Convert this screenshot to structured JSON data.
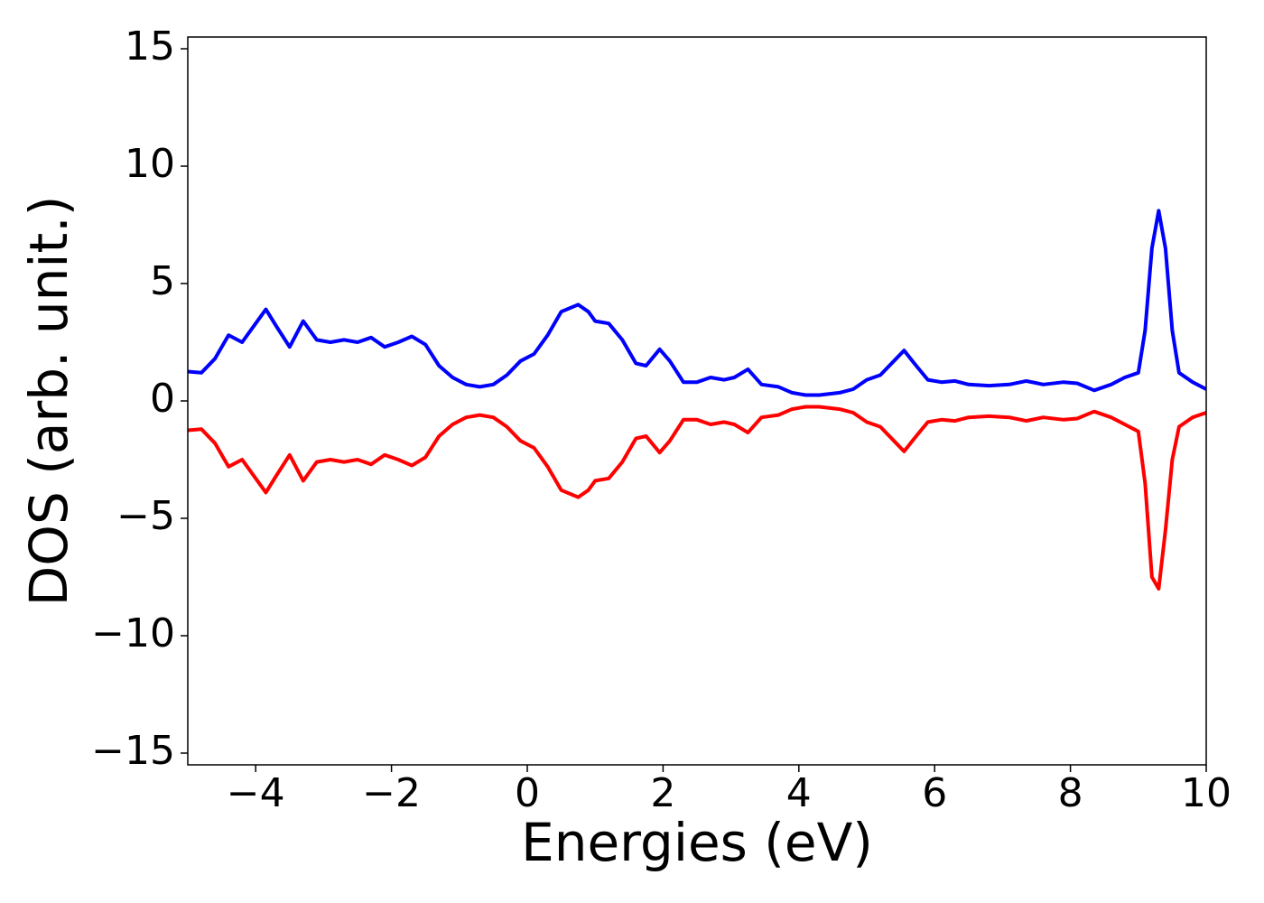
{
  "chart_data": {
    "type": "line",
    "x_label": "Energies (eV)",
    "y_label": "DOS (arb. unit.)",
    "x": [
      -5,
      -4.8,
      -4.6,
      -4.4,
      -4.2,
      -4.0,
      -3.85,
      -3.7,
      -3.5,
      -3.3,
      -3.1,
      -2.9,
      -2.7,
      -2.5,
      -2.3,
      -2.1,
      -1.9,
      -1.7,
      -1.5,
      -1.3,
      -1.1,
      -0.9,
      -0.7,
      -0.5,
      -0.3,
      -0.1,
      0.1,
      0.3,
      0.5,
      0.75,
      0.9,
      1.0,
      1.2,
      1.4,
      1.6,
      1.75,
      1.95,
      2.1,
      2.3,
      2.5,
      2.7,
      2.9,
      3.05,
      3.25,
      3.45,
      3.7,
      3.9,
      4.1,
      4.3,
      4.6,
      4.8,
      5.0,
      5.2,
      5.4,
      5.55,
      5.7,
      5.9,
      6.1,
      6.3,
      6.5,
      6.8,
      7.1,
      7.35,
      7.6,
      7.9,
      8.1,
      8.35,
      8.6,
      8.8,
      9.0,
      9.1,
      9.2,
      9.3,
      9.4,
      9.5,
      9.6,
      9.8,
      10
    ],
    "series": [
      {
        "color": "#0000ff",
        "values": [
          1.25,
          1.2,
          1.8,
          2.8,
          2.5,
          3.3,
          3.9,
          3.2,
          2.3,
          3.4,
          2.6,
          2.5,
          2.6,
          2.5,
          2.7,
          2.3,
          2.5,
          2.75,
          2.4,
          1.5,
          1.0,
          0.7,
          0.6,
          0.7,
          1.1,
          1.7,
          2.0,
          2.8,
          3.8,
          4.1,
          3.8,
          3.4,
          3.3,
          2.6,
          1.6,
          1.5,
          2.2,
          1.7,
          0.8,
          0.8,
          1.0,
          0.9,
          1.0,
          1.35,
          0.7,
          0.6,
          0.35,
          0.25,
          0.25,
          0.35,
          0.5,
          0.9,
          1.1,
          1.7,
          2.15,
          1.6,
          0.9,
          0.8,
          0.85,
          0.7,
          0.65,
          0.7,
          0.85,
          0.7,
          0.8,
          0.75,
          0.45,
          0.7,
          1.0,
          1.2,
          3.0,
          6.5,
          8.1,
          6.5,
          3.0,
          1.2,
          0.8,
          0.5
        ]
      },
      {
        "color": "#ff0000",
        "values": [
          -1.25,
          -1.2,
          -1.8,
          -2.8,
          -2.5,
          -3.3,
          -3.9,
          -3.2,
          -2.3,
          -3.4,
          -2.6,
          -2.5,
          -2.6,
          -2.5,
          -2.7,
          -2.3,
          -2.5,
          -2.75,
          -2.4,
          -1.5,
          -1.0,
          -0.7,
          -0.6,
          -0.7,
          -1.1,
          -1.7,
          -2.0,
          -2.8,
          -3.8,
          -4.1,
          -3.8,
          -3.4,
          -3.3,
          -2.6,
          -1.6,
          -1.5,
          -2.2,
          -1.7,
          -0.8,
          -0.8,
          -1.0,
          -0.9,
          -1.0,
          -1.35,
          -0.7,
          -0.6,
          -0.35,
          -0.25,
          -0.25,
          -0.35,
          -0.5,
          -0.9,
          -1.1,
          -1.7,
          -2.15,
          -1.6,
          -0.9,
          -0.8,
          -0.85,
          -0.7,
          -0.65,
          -0.7,
          -0.85,
          -0.7,
          -0.8,
          -0.75,
          -0.45,
          -0.7,
          -1.0,
          -1.3,
          -3.5,
          -7.5,
          -8.0,
          -5.5,
          -2.5,
          -1.1,
          -0.7,
          -0.5
        ]
      }
    ],
    "xlim": [
      -5,
      10
    ],
    "ylim": [
      -15.5,
      15.5
    ],
    "xticks": [
      {
        "value": -4,
        "label": "−4"
      },
      {
        "value": -2,
        "label": "−2"
      },
      0,
      2,
      4,
      6,
      8,
      10
    ],
    "yticks": [
      {
        "value": -15,
        "label": "−15"
      },
      {
        "value": -10,
        "label": "−10"
      },
      {
        "value": -5,
        "label": "−5"
      },
      0,
      5,
      10,
      15
    ],
    "grid": false
  }
}
